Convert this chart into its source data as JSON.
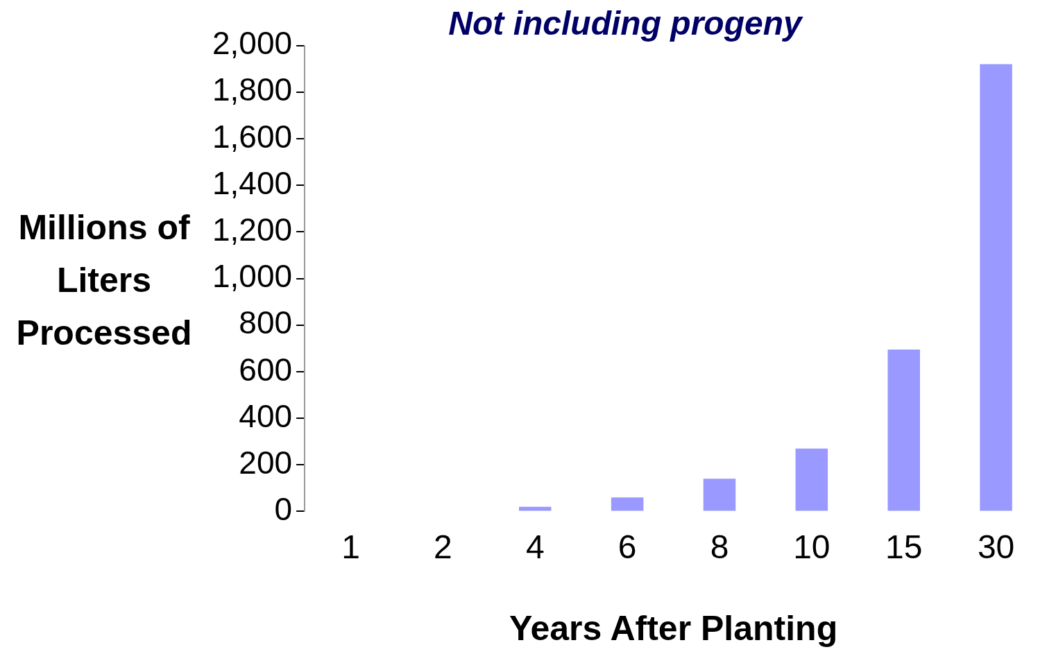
{
  "chart_data": {
    "type": "bar",
    "title": "Not including progeny",
    "xlabel": "Years After Planting",
    "ylabel": "Millions of Liters Processed",
    "categories": [
      "1",
      "2",
      "4",
      "6",
      "8",
      "10",
      "15",
      "30"
    ],
    "values": [
      0,
      0,
      20,
      60,
      140,
      270,
      695,
      1920
    ],
    "color": "#9999ff",
    "ylim": [
      0,
      2000
    ],
    "yticks": [
      0,
      200,
      400,
      600,
      800,
      {
        "value": 1000,
        "label": "1,000"
      },
      {
        "value": 1200,
        "label": "1,200"
      },
      {
        "value": 1400,
        "label": "1,400"
      },
      {
        "value": 1600,
        "label": "1,600"
      },
      {
        "value": 1800,
        "label": "1,800"
      },
      {
        "value": 2000,
        "label": "2,000"
      }
    ],
    "grid": false,
    "legend": false
  }
}
